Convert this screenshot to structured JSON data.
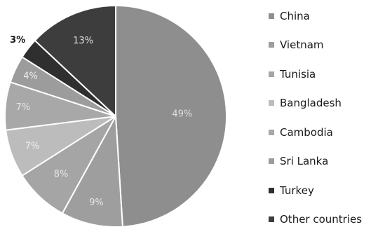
{
  "chart_data": {
    "type": "pie",
    "title": "",
    "legend_position": "right",
    "slices": [
      {
        "name": "China",
        "value": 49,
        "label": "49%",
        "color": "#8e8e8e",
        "label_color": "#e0e0e0"
      },
      {
        "name": "Vietnam",
        "value": 9,
        "label": "9%",
        "color": "#9e9e9e",
        "label_color": "#e6e6e6"
      },
      {
        "name": "Tunisia",
        "value": 8,
        "label": "8%",
        "color": "#a5a5a5",
        "label_color": "#e6e6e6"
      },
      {
        "name": "Bangladesh",
        "value": 7,
        "label": "7%",
        "color": "#bcbcbc",
        "label_color": "#f0f0f0"
      },
      {
        "name": "Cambodia",
        "value": 7,
        "label": "7%",
        "color": "#a8a8a8",
        "label_color": "#e6e6e6"
      },
      {
        "name": "Sri Lanka",
        "value": 4,
        "label": "4%",
        "color": "#9c9c9c",
        "label_color": "#eeeeee"
      },
      {
        "name": "Turkey",
        "value": 3,
        "label": "3%",
        "color": "#2f2f2f",
        "label_color": "#1a1a1a"
      },
      {
        "name": "Other countries",
        "value": 13,
        "label": "13%",
        "color": "#3d3d3d",
        "label_color": "#e0e0e0"
      }
    ]
  }
}
